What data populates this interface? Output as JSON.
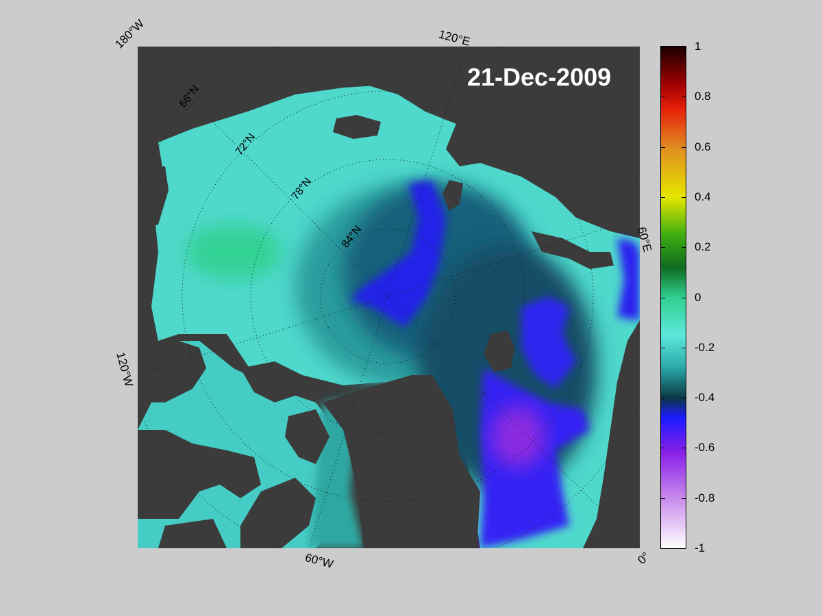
{
  "map": {
    "date": "21-Dec-2009",
    "edge_labels": {
      "west_180": "180°W",
      "east_120": "120°E",
      "east_60": "60°E",
      "west_120": "120°W",
      "west_60": "60°W",
      "zero": "0°"
    },
    "latitude_labels": [
      "66°N",
      "72°N",
      "78°N",
      "84°N"
    ],
    "colors": {
      "land": "#3b3b3b",
      "outside": "#808080",
      "grid": "#111111"
    }
  },
  "colorbar": {
    "min": -1,
    "max": 1,
    "ticks": [
      "1",
      "0.8",
      "0.6",
      "0.4",
      "0.2",
      "0",
      "-0.2",
      "-0.4",
      "-0.6",
      "-0.8",
      "-1"
    ],
    "stops": [
      {
        "v": 1.0,
        "c": "#1a0000"
      },
      {
        "v": 0.85,
        "c": "#a00000"
      },
      {
        "v": 0.75,
        "c": "#e8200a"
      },
      {
        "v": 0.6,
        "c": "#e08a20"
      },
      {
        "v": 0.4,
        "c": "#e6e600"
      },
      {
        "v": 0.25,
        "c": "#3fae10"
      },
      {
        "v": 0.12,
        "c": "#0f6a1f"
      },
      {
        "v": 0.0,
        "c": "#30d090"
      },
      {
        "v": -0.15,
        "c": "#5ee8dc"
      },
      {
        "v": -0.28,
        "c": "#2aa8a8"
      },
      {
        "v": -0.4,
        "c": "#0c3844"
      },
      {
        "v": -0.48,
        "c": "#1a1aff"
      },
      {
        "v": -0.62,
        "c": "#8a20e8"
      },
      {
        "v": -0.8,
        "c": "#c88aec"
      },
      {
        "v": -1.0,
        "c": "#ffffff"
      }
    ]
  }
}
